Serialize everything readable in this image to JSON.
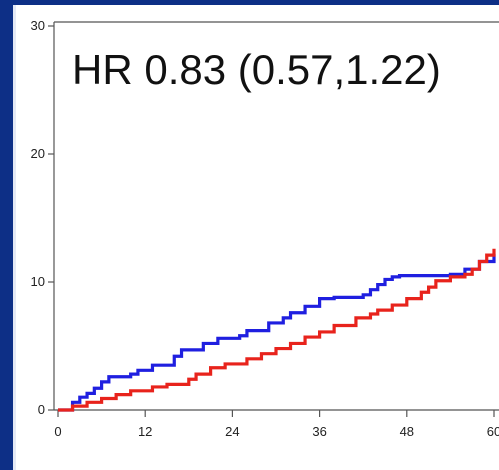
{
  "annotation": "HR 0.83 (0.57,1.22)",
  "chart_data": {
    "type": "line",
    "title": "",
    "xlabel": "",
    "ylabel": "",
    "xlim": [
      0,
      60
    ],
    "ylim": [
      0,
      30
    ],
    "x_ticks": [
      0,
      12,
      24,
      36,
      48,
      60
    ],
    "x_tick_labels": [
      "0",
      "12",
      "24",
      "36",
      "48",
      "60"
    ],
    "y_ticks": [
      0,
      10,
      20,
      30
    ],
    "y_tick_labels": [
      "0",
      "10",
      "20",
      "30"
    ],
    "step": true,
    "grid": false,
    "legend": "none",
    "series": [
      {
        "color": "#1f1fe0",
        "x": [
          0,
          2,
          3,
          4,
          5,
          6,
          7,
          10,
          11,
          13,
          16,
          17,
          20,
          22,
          25,
          26,
          29,
          31,
          32,
          34,
          36,
          38,
          42,
          43,
          44,
          45,
          46,
          47,
          50,
          54,
          56,
          58,
          60
        ],
        "y": [
          0,
          0.6,
          1.0,
          1.3,
          1.7,
          2.2,
          2.6,
          2.8,
          3.1,
          3.5,
          4.2,
          4.7,
          5.2,
          5.6,
          5.8,
          6.2,
          6.8,
          7.2,
          7.6,
          8.1,
          8.7,
          8.8,
          9.0,
          9.4,
          9.8,
          10.2,
          10.4,
          10.5,
          10.5,
          10.6,
          11.0,
          11.6,
          12.2
        ]
      },
      {
        "color": "#e8231c",
        "x": [
          0,
          2,
          4,
          6,
          8,
          10,
          13,
          15,
          18,
          19,
          21,
          23,
          26,
          28,
          30,
          32,
          34,
          36,
          38,
          41,
          43,
          44,
          46,
          48,
          50,
          51,
          52,
          54,
          56,
          57,
          58,
          59,
          60
        ],
        "y": [
          0,
          0.3,
          0.6,
          0.9,
          1.2,
          1.5,
          1.8,
          2.0,
          2.4,
          2.8,
          3.3,
          3.6,
          4.0,
          4.4,
          4.8,
          5.2,
          5.7,
          6.1,
          6.6,
          7.2,
          7.5,
          7.8,
          8.2,
          8.7,
          9.2,
          9.6,
          10.1,
          10.4,
          10.6,
          11.0,
          11.6,
          12.1,
          12.6
        ]
      }
    ]
  }
}
